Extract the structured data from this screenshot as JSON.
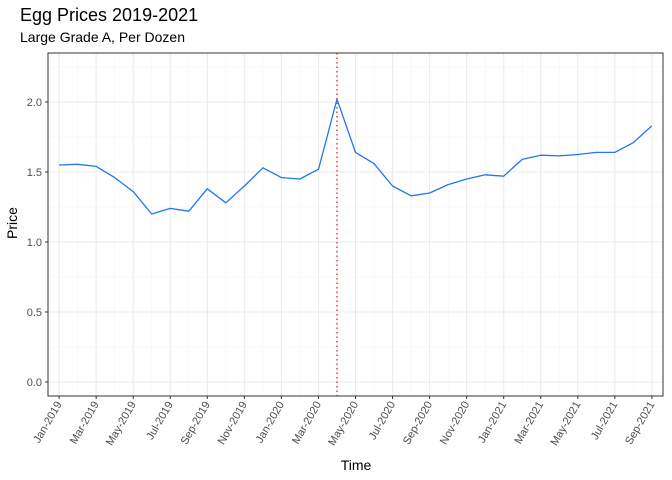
{
  "chart_data": {
    "type": "line",
    "title": "Egg Prices 2019-2021",
    "subtitle": "Large Grade A, Per Dozen",
    "xlabel": "Time",
    "ylabel": "Price",
    "ylim": [
      -0.1,
      2.35
    ],
    "yticks": [
      0.0,
      0.5,
      1.0,
      1.5,
      2.0
    ],
    "ytick_labels": [
      "0.0",
      "0.5",
      "1.0",
      "1.5",
      "2.0"
    ],
    "x_tick_labels": [
      "Jan-2019",
      "Mar-2019",
      "May-2019",
      "Jul-2019",
      "Sep-2019",
      "Nov-2019",
      "Jan-2020",
      "Mar-2020",
      "May-2020",
      "Jul-2020",
      "Sep-2020",
      "Nov-2020",
      "Jan-2021",
      "Mar-2021",
      "May-2021",
      "Jul-2021",
      "Sep-2021"
    ],
    "months": [
      "Jan-2019",
      "Feb-2019",
      "Mar-2019",
      "Apr-2019",
      "May-2019",
      "Jun-2019",
      "Jul-2019",
      "Aug-2019",
      "Sep-2019",
      "Oct-2019",
      "Nov-2019",
      "Dec-2019",
      "Jan-2020",
      "Feb-2020",
      "Mar-2020",
      "Apr-2020",
      "May-2020",
      "Jun-2020",
      "Jul-2020",
      "Aug-2020",
      "Sep-2020",
      "Oct-2020",
      "Nov-2020",
      "Dec-2020",
      "Jan-2021",
      "Feb-2021",
      "Mar-2021",
      "Apr-2021",
      "May-2021",
      "Jun-2021",
      "Jul-2021",
      "Aug-2021",
      "Sep-2021"
    ],
    "series": [
      {
        "values": [
          1.55,
          1.555,
          1.54,
          1.46,
          1.36,
          1.2,
          1.24,
          1.22,
          1.38,
          1.28,
          1.4,
          1.53,
          1.46,
          1.45,
          1.52,
          2.02,
          1.64,
          1.56,
          1.4,
          1.33,
          1.35,
          1.41,
          1.45,
          1.48,
          1.47,
          1.59,
          1.62,
          1.615,
          1.625,
          1.64,
          1.64,
          1.71,
          1.83
        ],
        "color": "#1f78f0"
      }
    ],
    "reference_line": {
      "x": "Apr-2020",
      "color": "#e0262c",
      "style": "dotted"
    },
    "grid": true,
    "background": "#ffffff",
    "panel_border": "#333333",
    "grid_major_color": "#ebebeb",
    "grid_minor_color": "#f5f5f5"
  }
}
